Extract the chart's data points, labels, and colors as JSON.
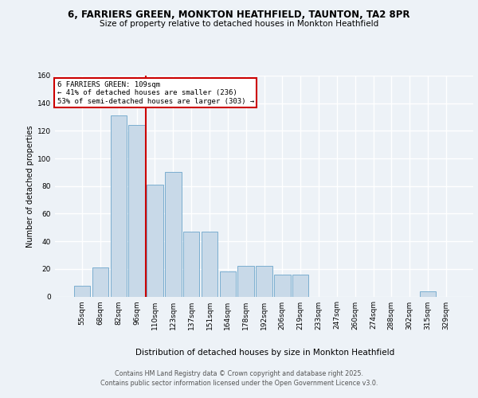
{
  "title": "6, FARRIERS GREEN, MONKTON HEATHFIELD, TAUNTON, TA2 8PR",
  "subtitle": "Size of property relative to detached houses in Monkton Heathfield",
  "xlabel": "Distribution of detached houses by size in Monkton Heathfield",
  "ylabel": "Number of detached properties",
  "categories": [
    "55sqm",
    "68sqm",
    "82sqm",
    "96sqm",
    "110sqm",
    "123sqm",
    "137sqm",
    "151sqm",
    "164sqm",
    "178sqm",
    "192sqm",
    "206sqm",
    "219sqm",
    "233sqm",
    "247sqm",
    "260sqm",
    "274sqm",
    "288sqm",
    "302sqm",
    "315sqm",
    "329sqm"
  ],
  "values": [
    8,
    21,
    131,
    124,
    81,
    90,
    47,
    47,
    18,
    22,
    22,
    16,
    16,
    0,
    0,
    0,
    0,
    0,
    0,
    4,
    0
  ],
  "bar_color": "#c8d9e8",
  "bar_edge_color": "#7baed0",
  "vline_position": 3.5,
  "vline_color": "#cc0000",
  "property_label": "6 FARRIERS GREEN: 109sqm",
  "pct_smaller": 41,
  "n_smaller": 236,
  "pct_larger_semi": 53,
  "n_larger_semi": 303,
  "bg_color": "#edf2f7",
  "footer_line1": "Contains HM Land Registry data © Crown copyright and database right 2025.",
  "footer_line2": "Contains public sector information licensed under the Open Government Licence v3.0.",
  "ylim": [
    0,
    160
  ],
  "yticks": [
    0,
    20,
    40,
    60,
    80,
    100,
    120,
    140,
    160
  ]
}
